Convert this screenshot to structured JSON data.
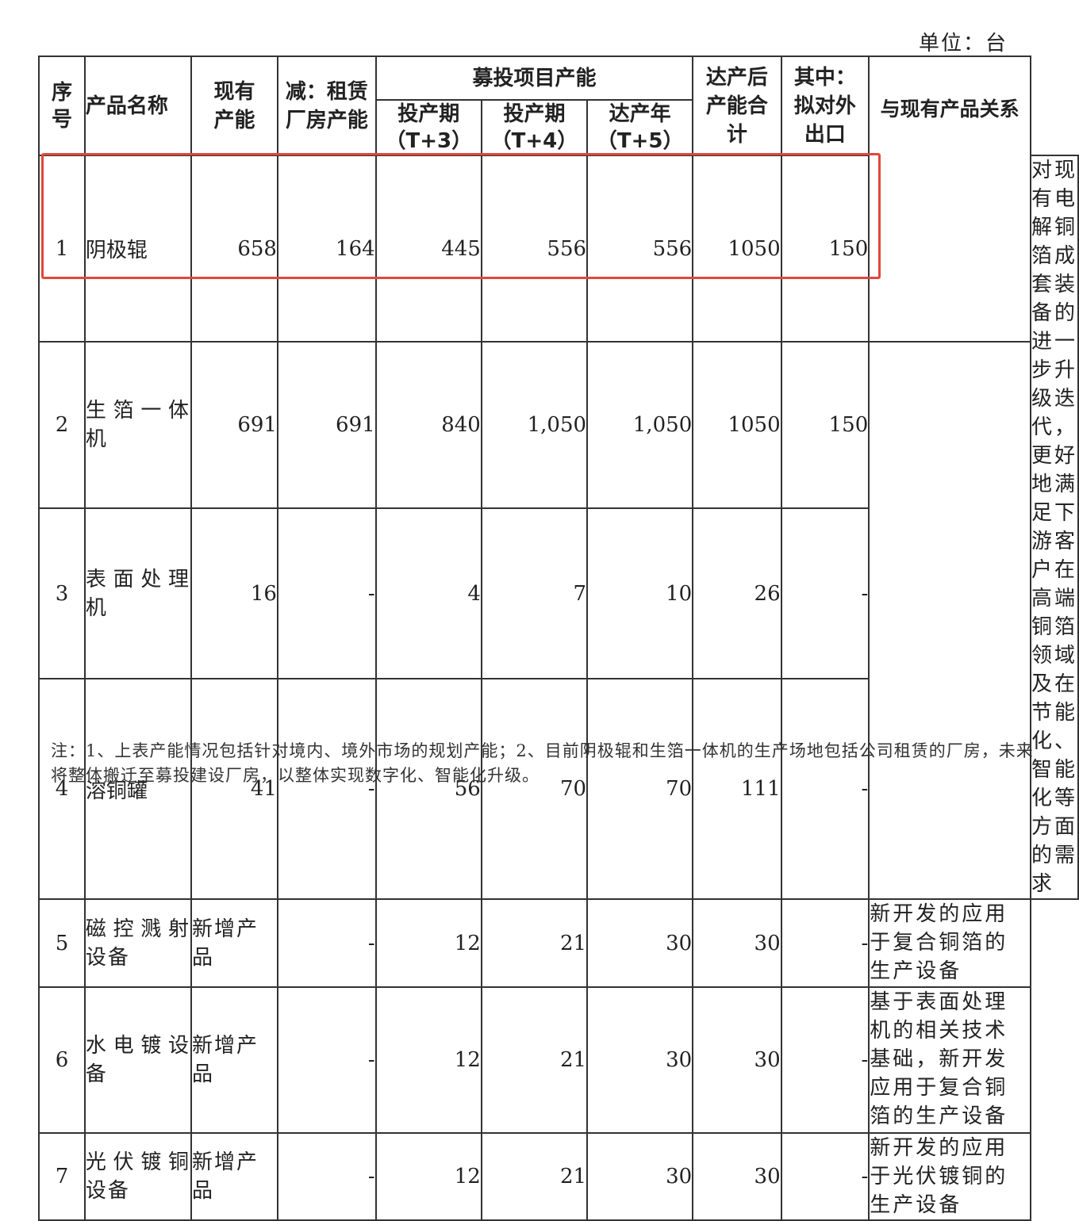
{
  "unit": "单位：台",
  "headers": {
    "seq": "序号",
    "name": "产品名称",
    "existing": "现有产能",
    "minus_leased": "减：租赁厂房产能",
    "project_group": "募投项目产能",
    "t3_title": "投产期",
    "t3_sub": "（T+3）",
    "t4_title": "投产期",
    "t4_sub": "（T+4）",
    "t5_title": "达产年",
    "t5_sub": "（T+5）",
    "total_after": "达产后产能合计",
    "export": "其中：拟对外出口",
    "relation": "与现有产品关系"
  },
  "rows": [
    {
      "seq": "1",
      "name": "阴极辊",
      "existing": "658",
      "minus_leased": "164",
      "t3": "445",
      "t4": "556",
      "t5": "556",
      "total": "1050",
      "export": "150"
    },
    {
      "seq": "2",
      "name": "生箔一体机",
      "existing": "691",
      "minus_leased": "691",
      "t3": "840",
      "t4": "1,050",
      "t5": "1,050",
      "total": "1050",
      "export": "150"
    },
    {
      "seq": "3",
      "name": "表面处理机",
      "existing": "16",
      "minus_leased": "-",
      "t3": "4",
      "t4": "7",
      "t5": "10",
      "total": "26",
      "export": "-"
    },
    {
      "seq": "4",
      "name": "溶铜罐",
      "existing": "41",
      "minus_leased": "-",
      "t3": "56",
      "t4": "70",
      "t5": "70",
      "total": "111",
      "export": "-"
    },
    {
      "seq": "5",
      "name": "磁控溅射设备",
      "existing": "新增产品",
      "minus_leased": "-",
      "t3": "12",
      "t4": "21",
      "t5": "30",
      "total": "30",
      "export": "-"
    },
    {
      "seq": "6",
      "name": "水电镀设备",
      "existing": "新增产品",
      "minus_leased": "-",
      "t3": "12",
      "t4": "21",
      "t5": "30",
      "total": "30",
      "export": "-"
    },
    {
      "seq": "7",
      "name": "光伏镀铜设备",
      "existing": "新增产品",
      "minus_leased": "-",
      "t3": "12",
      "t4": "21",
      "t5": "30",
      "total": "30",
      "export": "-"
    }
  ],
  "relations": {
    "r1_4": "对现有电解铜箔成套装备的进一步升级迭代，更好地满足下游客户在高端铜箔领域及在节能化、智能化等方面的需求",
    "r5": "新开发的应用于复合铜箔的生产设备",
    "r6": "基于表面处理机的相关技术基础，新开发应用于复合铜箔的生产设备",
    "r7": "新开发的应用于光伏镀铜的生产设备"
  },
  "highlight_color": "#e0473d",
  "note": "注：1、上表产能情况包括针对境内、境外市场的规划产能；2、目前阴极辊和生箔一体机的生产场地包括公司租赁的厂房，未来将整体搬迁至募投建设厂房，以整体实现数字化、智能化升级。"
}
